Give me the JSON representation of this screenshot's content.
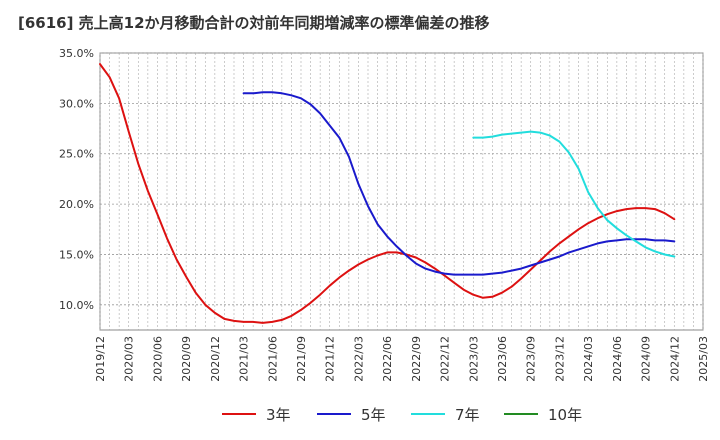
{
  "title": "[6616]  売上高12か月移動合計の対前年同期増減率の標準偏差の推移",
  "chart_data": {
    "type": "line",
    "title": "[6616]  売上高12か月移動合計の対前年同期増減率の標準偏差の推移",
    "xlabel": "",
    "ylabel": "",
    "ylim": [
      7.5,
      35.0
    ],
    "yticks": [
      "10.0%",
      "15.0%",
      "20.0%",
      "25.0%",
      "30.0%",
      "35.0%"
    ],
    "ytick_values": [
      10,
      15,
      20,
      25,
      30,
      35
    ],
    "xticks": [
      "2019/12",
      "2020/03",
      "2020/06",
      "2020/09",
      "2020/12",
      "2021/03",
      "2021/06",
      "2021/09",
      "2021/12",
      "2022/03",
      "2022/06",
      "2022/09",
      "2022/12",
      "2023/03",
      "2023/06",
      "2023/09",
      "2023/12",
      "2024/03",
      "2024/06",
      "2024/09",
      "2024/12",
      "2025/03"
    ],
    "grid": true,
    "legend_position": "bottom",
    "series": [
      {
        "name": "3年",
        "color": "#dd1111",
        "x": [
          "2019/12",
          "2020/01",
          "2020/02",
          "2020/03",
          "2020/04",
          "2020/05",
          "2020/06",
          "2020/07",
          "2020/08",
          "2020/09",
          "2020/10",
          "2020/11",
          "2020/12",
          "2021/01",
          "2021/02",
          "2021/03",
          "2021/04",
          "2021/05",
          "2021/06",
          "2021/07",
          "2021/08",
          "2021/09",
          "2021/10",
          "2021/11",
          "2021/12",
          "2022/01",
          "2022/02",
          "2022/03",
          "2022/04",
          "2022/05",
          "2022/06",
          "2022/07",
          "2022/08",
          "2022/09",
          "2022/10",
          "2022/11",
          "2022/12",
          "2023/01",
          "2023/02",
          "2023/03",
          "2023/04",
          "2023/05",
          "2023/06",
          "2023/07",
          "2023/08",
          "2023/09",
          "2023/10",
          "2023/11",
          "2023/12",
          "2024/01",
          "2024/02",
          "2024/03",
          "2024/04",
          "2024/05",
          "2024/06",
          "2024/07",
          "2024/08",
          "2024/09",
          "2024/10",
          "2024/11",
          "2024/12"
        ],
        "values": [
          33.9,
          32.6,
          30.5,
          27.2,
          24.0,
          21.3,
          19.0,
          16.6,
          14.5,
          12.8,
          11.2,
          10.0,
          9.2,
          8.6,
          8.4,
          8.3,
          8.3,
          8.2,
          8.3,
          8.5,
          8.9,
          9.5,
          10.2,
          11.0,
          11.9,
          12.7,
          13.4,
          14.0,
          14.5,
          14.9,
          15.2,
          15.2,
          15.0,
          14.7,
          14.2,
          13.6,
          12.9,
          12.2,
          11.5,
          11.0,
          10.7,
          10.8,
          11.2,
          11.8,
          12.6,
          13.5,
          14.4,
          15.3,
          16.1,
          16.8,
          17.5,
          18.1,
          18.6,
          19.0,
          19.3,
          19.5,
          19.6,
          19.6,
          19.5,
          19.1,
          18.5
        ]
      },
      {
        "name": "5年",
        "color": "#1a1acc",
        "x": [
          "2021/03",
          "2021/04",
          "2021/05",
          "2021/06",
          "2021/07",
          "2021/08",
          "2021/09",
          "2021/10",
          "2021/11",
          "2021/12",
          "2022/01",
          "2022/02",
          "2022/03",
          "2022/04",
          "2022/05",
          "2022/06",
          "2022/07",
          "2022/08",
          "2022/09",
          "2022/10",
          "2022/11",
          "2022/12",
          "2023/01",
          "2023/02",
          "2023/03",
          "2023/04",
          "2023/05",
          "2023/06",
          "2023/07",
          "2023/08",
          "2023/09",
          "2023/10",
          "2023/11",
          "2023/12",
          "2024/01",
          "2024/02",
          "2024/03",
          "2024/04",
          "2024/05",
          "2024/06",
          "2024/07",
          "2024/08",
          "2024/09",
          "2024/10",
          "2024/11",
          "2024/12"
        ],
        "values": [
          31.0,
          31.0,
          31.1,
          31.1,
          31.0,
          30.8,
          30.5,
          29.9,
          29.0,
          27.8,
          26.6,
          24.7,
          22.0,
          19.8,
          18.0,
          16.8,
          15.8,
          14.9,
          14.1,
          13.6,
          13.3,
          13.1,
          13.0,
          13.0,
          13.0,
          13.0,
          13.1,
          13.2,
          13.4,
          13.6,
          13.9,
          14.2,
          14.5,
          14.8,
          15.2,
          15.5,
          15.8,
          16.1,
          16.3,
          16.4,
          16.5,
          16.5,
          16.5,
          16.4,
          16.4,
          16.3
        ]
      },
      {
        "name": "7年",
        "color": "#22dddd",
        "x": [
          "2023/03",
          "2023/04",
          "2023/05",
          "2023/06",
          "2023/07",
          "2023/08",
          "2023/09",
          "2023/10",
          "2023/11",
          "2023/12",
          "2024/01",
          "2024/02",
          "2024/03",
          "2024/04",
          "2024/05",
          "2024/06",
          "2024/07",
          "2024/08",
          "2024/09",
          "2024/10",
          "2024/11",
          "2024/12"
        ],
        "values": [
          26.6,
          26.6,
          26.7,
          26.9,
          27.0,
          27.1,
          27.2,
          27.1,
          26.8,
          26.2,
          25.1,
          23.5,
          21.2,
          19.6,
          18.4,
          17.6,
          16.9,
          16.3,
          15.7,
          15.3,
          15.0,
          14.8
        ]
      },
      {
        "name": "10年",
        "color": "#228b22",
        "x": [],
        "values": []
      }
    ]
  }
}
